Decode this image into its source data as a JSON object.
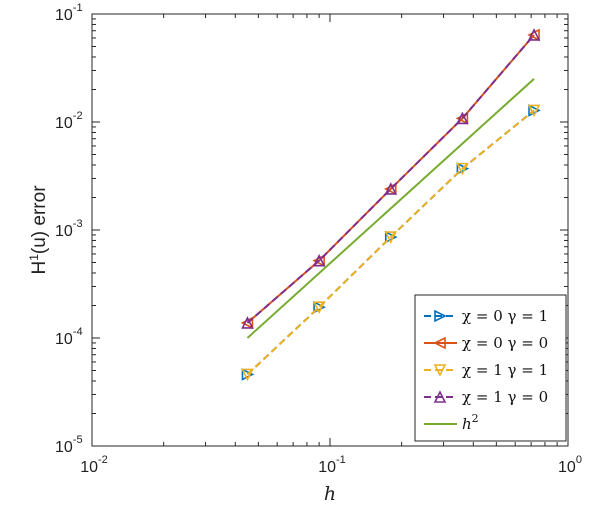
{
  "chart_data": {
    "type": "line",
    "xscale": "log",
    "yscale": "log",
    "xlim": [
      0.01,
      1
    ],
    "ylim": [
      1e-05,
      0.1
    ],
    "xlabel": "h",
    "ylabel": "H^1(u) error",
    "ylabel_parts": {
      "main": "H",
      "sup": "1",
      "rest": "(u) error"
    },
    "grid": false,
    "legend_position": "bottom-right",
    "x_ticks": [
      {
        "value": 0.01,
        "base": "10",
        "exp": "-2"
      },
      {
        "value": 0.1,
        "base": "10",
        "exp": "-1"
      },
      {
        "value": 1,
        "base": "10",
        "exp": "0"
      }
    ],
    "y_ticks": [
      {
        "value": 1e-05,
        "base": "10",
        "exp": "-5"
      },
      {
        "value": 0.0001,
        "base": "10",
        "exp": "-4"
      },
      {
        "value": 0.001,
        "base": "10",
        "exp": "-3"
      },
      {
        "value": 0.01,
        "base": "10",
        "exp": "-2"
      },
      {
        "value": 0.1,
        "base": "10",
        "exp": "-1"
      }
    ],
    "series": [
      {
        "name": "χ = 0 γ = 1",
        "color": "#0072BD",
        "linestyle": "dashed",
        "marker": "triangle-right",
        "x": [
          0.045,
          0.09,
          0.18,
          0.36,
          0.72
        ],
        "y": [
          4.6e-05,
          0.000193,
          0.00086,
          0.0037,
          0.0128
        ]
      },
      {
        "name": "χ = 0 γ = 0",
        "color": "#D95319",
        "linestyle": "solid",
        "marker": "triangle-left",
        "x": [
          0.045,
          0.09,
          0.18,
          0.36,
          0.72
        ],
        "y": [
          0.000138,
          0.00052,
          0.0024,
          0.0108,
          0.064
        ]
      },
      {
        "name": "χ = 1 γ = 1",
        "color": "#EDB120",
        "linestyle": "dashed",
        "marker": "triangle-down",
        "x": [
          0.045,
          0.09,
          0.18,
          0.36,
          0.72
        ],
        "y": [
          4.6e-05,
          0.000193,
          0.00086,
          0.0037,
          0.0128
        ]
      },
      {
        "name": "χ = 1 γ = 0",
        "color": "#7E2F8E",
        "linestyle": "dashed",
        "marker": "triangle-up",
        "x": [
          0.045,
          0.09,
          0.18,
          0.36,
          0.72
        ],
        "y": [
          0.000138,
          0.00052,
          0.0024,
          0.0108,
          0.064
        ]
      },
      {
        "name": "h^2",
        "label_parts": {
          "main": "h",
          "sup": "2"
        },
        "color": "#77AC30",
        "linestyle": "solid",
        "marker": "none",
        "x": [
          0.045,
          0.72
        ],
        "y": [
          0.0001,
          0.0251
        ]
      }
    ]
  }
}
